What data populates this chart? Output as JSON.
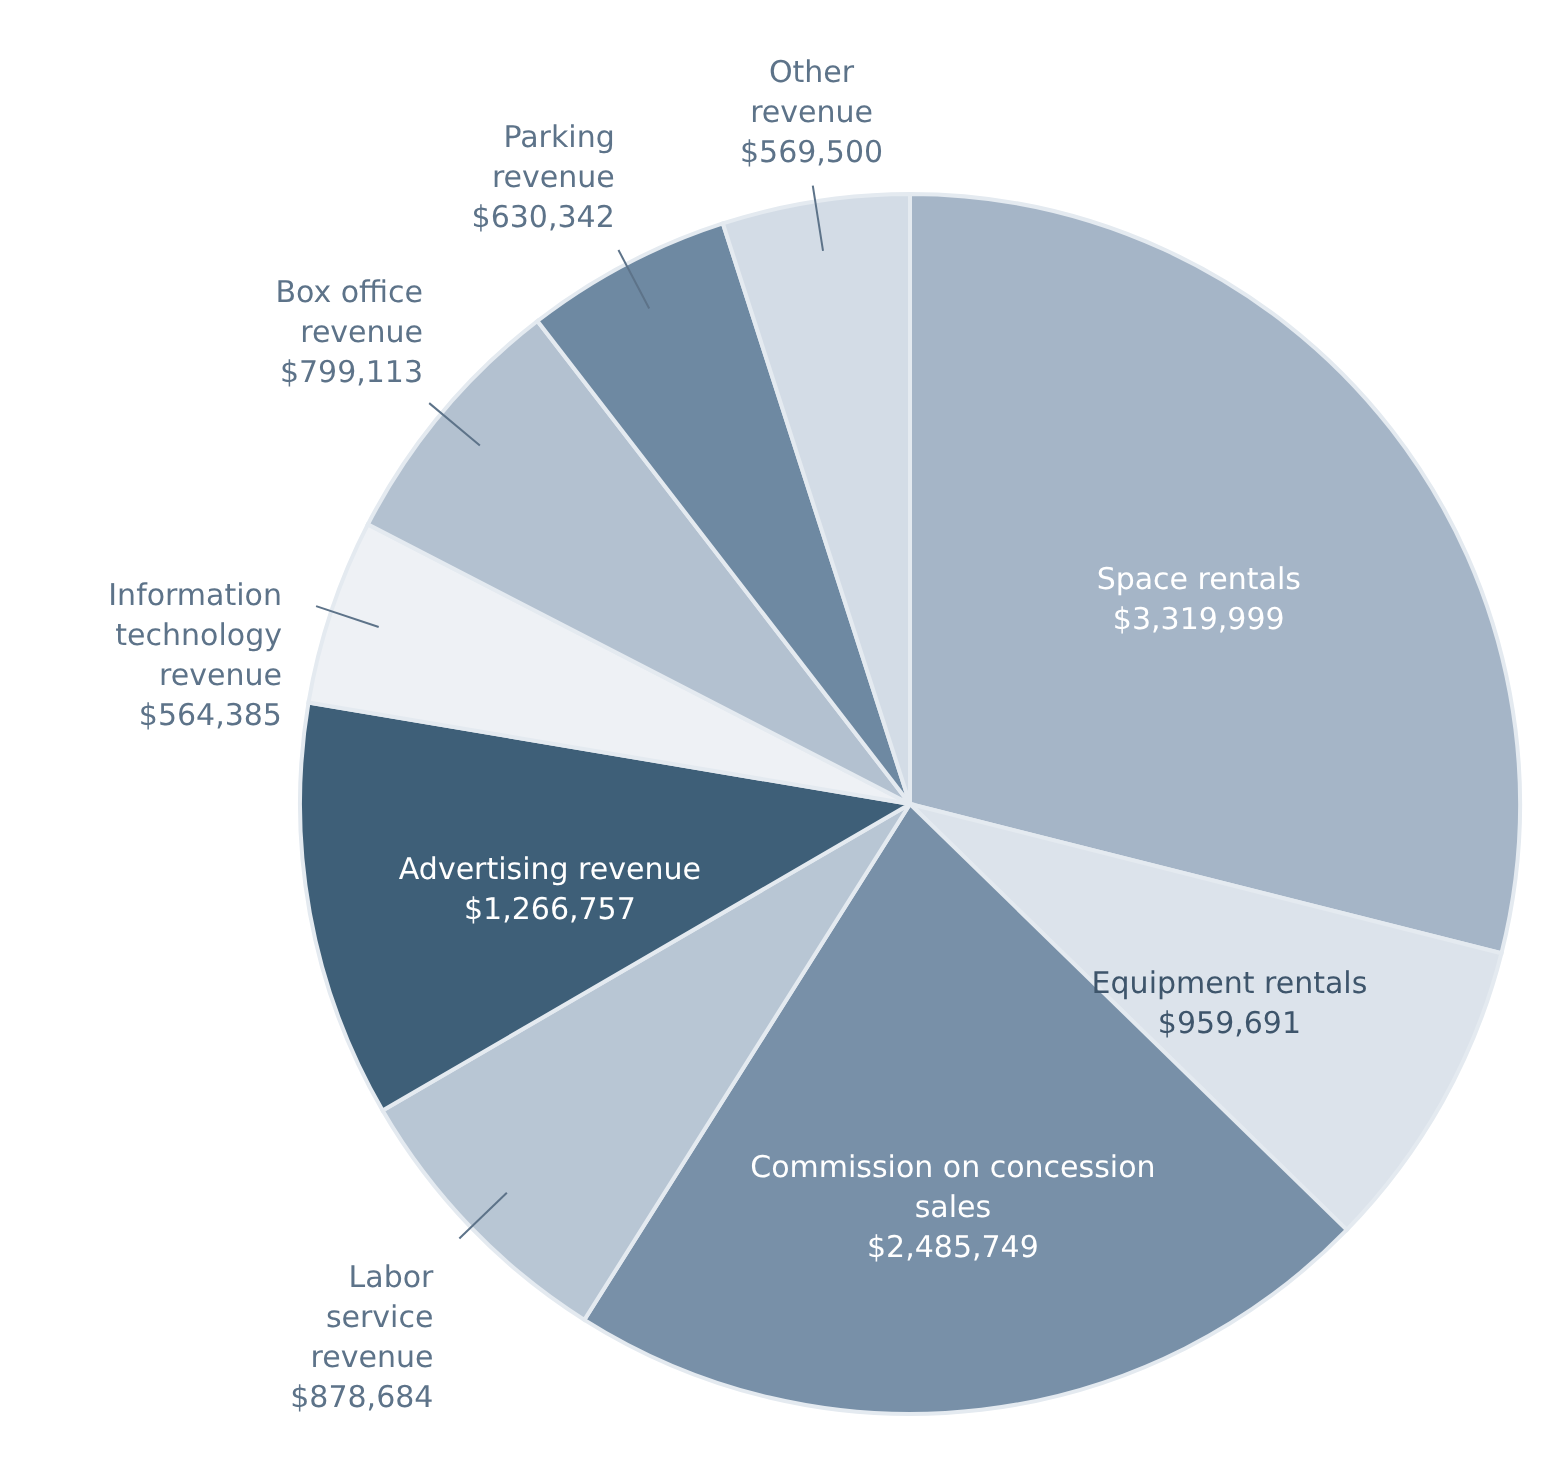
{
  "chart_data": {
    "type": "pie",
    "categories": [
      "Space rentals",
      "Equipment rentals",
      "Commission on concession sales",
      "Labor service revenue",
      "Advertising revenue",
      "Information technology revenue",
      "Box office revenue",
      "Parking revenue",
      "Other revenue"
    ],
    "values": [
      3319999,
      959691,
      2485749,
      878684,
      1266757,
      564385,
      799113,
      630342,
      569500
    ],
    "value_labels": [
      "$3,319,999",
      "$959,691",
      "$2,485,749",
      "$878,684",
      "$1,266,757",
      "$564,385",
      "$799,113",
      "$630,342",
      "$569,500"
    ],
    "colors": [
      "#a5b5c7",
      "#dce3eb",
      "#7890a8",
      "#b8c6d4",
      "#3e5f78",
      "#eef1f5",
      "#b3c1d0",
      "#6e89a2",
      "#d3dce6"
    ]
  }
}
